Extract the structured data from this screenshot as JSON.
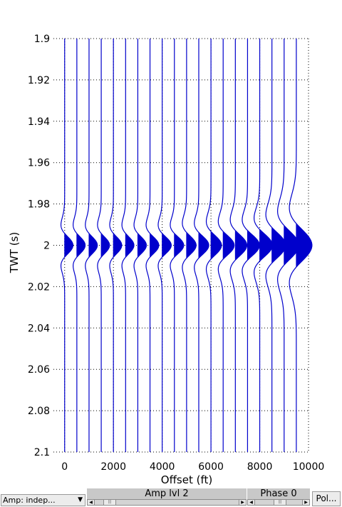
{
  "chart_data": {
    "type": "line",
    "title": "",
    "xlabel": "Offset (ft)",
    "ylabel": "TWT (s)",
    "xlim": [
      -460,
      10000
    ],
    "ylim": [
      2.1,
      1.9
    ],
    "y_axis_reversed": true,
    "grid": true,
    "line_color": "#0000cc",
    "xticks": [
      0,
      2000,
      4000,
      6000,
      8000,
      10000
    ],
    "xtick_labels": [
      "0",
      "2000",
      "4000",
      "6000",
      "8000",
      "10000"
    ],
    "yticks": [
      1.9,
      1.92,
      1.94,
      1.96,
      1.98,
      2.0,
      2.02,
      2.04,
      2.06,
      2.08,
      2.1
    ],
    "ytick_labels": [
      "1.9",
      "1.92",
      "1.94",
      "1.96",
      "1.98",
      "2",
      "2.02",
      "2.04",
      "2.06",
      "2.08",
      "2.1"
    ],
    "trace_offsets": [
      0,
      500,
      1000,
      1500,
      2000,
      2500,
      3000,
      3500,
      4000,
      4500,
      5000,
      5500,
      6000,
      6500,
      7000,
      7500,
      8000,
      8500,
      9000,
      9500
    ],
    "trace_spacing": 500,
    "center_time": 2.0,
    "wavelet_half_width": [
      0.006,
      0.006,
      0.006,
      0.006,
      0.006,
      0.006,
      0.006,
      0.006,
      0.006,
      0.006,
      0.0065,
      0.0065,
      0.007,
      0.007,
      0.0075,
      0.0075,
      0.008,
      0.009,
      0.01,
      0.011
    ],
    "wavelet_peak_amplitude": [
      340,
      340,
      340,
      340,
      340,
      340,
      350,
      360,
      370,
      380,
      390,
      410,
      430,
      450,
      470,
      490,
      520,
      560,
      600,
      640
    ],
    "sidelobe_extent": [
      0.03,
      0.03,
      0.031,
      0.031,
      0.032,
      0.032,
      0.033,
      0.034,
      0.035,
      0.036,
      0.037,
      0.038,
      0.039,
      0.04,
      0.041,
      0.042,
      0.043,
      0.044,
      0.045,
      0.046
    ]
  },
  "controls": {
    "amp_mode_value": "Amp: indep...",
    "amp_level_label": "Amp lvl 2",
    "phase_label": "Phase 0",
    "polarity_button_label": "Pol..."
  }
}
